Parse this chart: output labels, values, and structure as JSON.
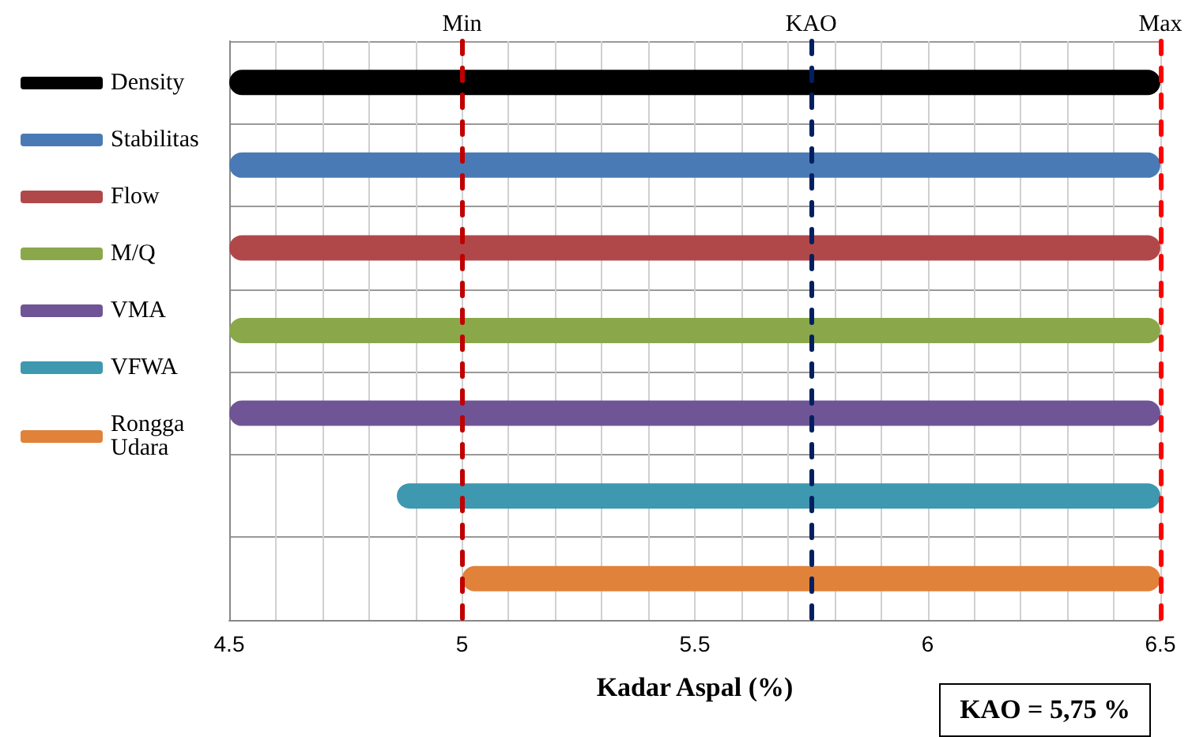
{
  "chart_data": {
    "type": "bar",
    "orientation": "horizontal",
    "categories": [
      null,
      null,
      null,
      null,
      null,
      null,
      null
    ],
    "series": [
      {
        "name": "Density",
        "color": "#000000",
        "values": [
          2,
          null,
          null,
          null,
          null,
          null,
          null
        ],
        "base": [
          4.5,
          null,
          null,
          null,
          null,
          null,
          null
        ]
      },
      {
        "name": "Stabilitas",
        "color": "#4a7ab5",
        "values": [
          null,
          2,
          null,
          null,
          null,
          null,
          null
        ],
        "base": [
          null,
          4.5,
          null,
          null,
          null,
          null,
          null
        ]
      },
      {
        "name": "Flow",
        "color": "#b0484a",
        "values": [
          null,
          null,
          2,
          null,
          null,
          null,
          null
        ],
        "base": [
          null,
          null,
          4.5,
          null,
          null,
          null,
          null
        ]
      },
      {
        "name": "M/Q",
        "color": "#8aa84a",
        "values": [
          null,
          null,
          null,
          2,
          null,
          null,
          null
        ],
        "base": [
          null,
          null,
          null,
          4.5,
          null,
          null,
          null
        ]
      },
      {
        "name": "VMA",
        "color": "#6f5596",
        "values": [
          null,
          null,
          null,
          null,
          2,
          null,
          null
        ],
        "base": [
          null,
          null,
          null,
          null,
          4.5,
          null,
          null
        ]
      },
      {
        "name": "VFWA",
        "color": "#3d98b0",
        "values": [
          null,
          null,
          null,
          null,
          null,
          1.64,
          null
        ],
        "base": [
          null,
          null,
          null,
          null,
          null,
          4.86,
          null
        ]
      },
      {
        "name": "Rongga Udara",
        "color": "#e0823a",
        "values": [
          null,
          null,
          null,
          null,
          null,
          null,
          1.5
        ],
        "base": [
          null,
          null,
          null,
          null,
          null,
          null,
          5.0
        ]
      }
    ],
    "ref_lines": [
      {
        "axis": "x",
        "value": 5,
        "label": "Min",
        "color": "#c00000",
        "line_style": "dashed"
      },
      {
        "axis": "x",
        "value": 6.5,
        "label": "Max",
        "color": "#ff0000",
        "line_style": "dashed"
      },
      {
        "axis": "x",
        "value": 5.75,
        "label": "KAO",
        "color": "#002060",
        "line_style": "dashed"
      }
    ],
    "xlabel": "Kadar Aspal (%)",
    "xlim": [
      4.5,
      6.5
    ],
    "xticks": [
      4.5,
      5,
      5.5,
      6,
      6.5
    ],
    "grid": true,
    "legend": "left",
    "tick_labels": "x",
    "annotations": [
      "KAO = 5,75 %"
    ]
  }
}
